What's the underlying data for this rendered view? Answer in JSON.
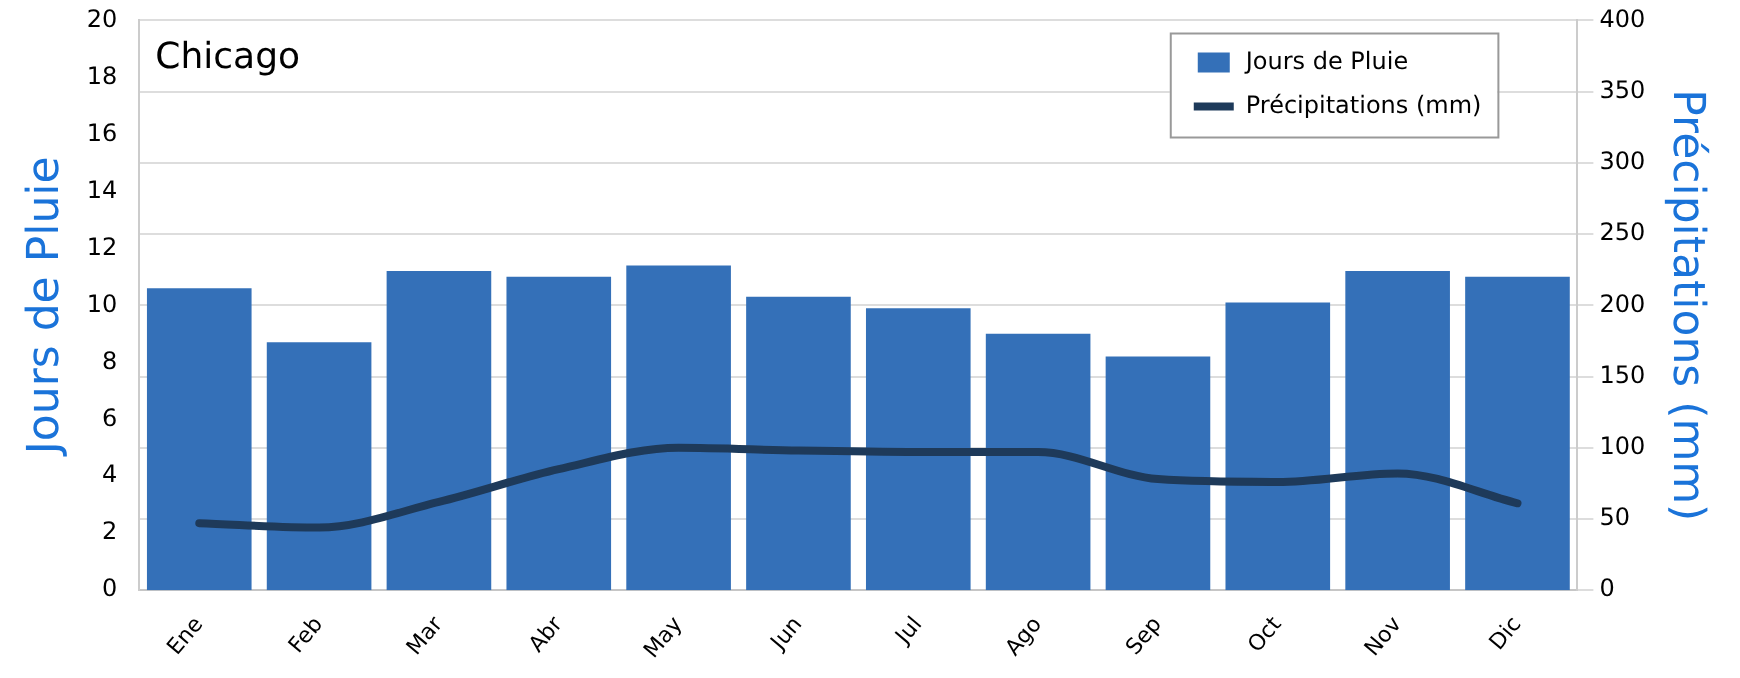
{
  "chart_data": {
    "type": "bar",
    "title": "Chicago",
    "ylabel": "Jours de Pluie",
    "y2label": "Précipitations (mm)",
    "categories": [
      "Ene",
      "Feb",
      "Mar",
      "Abr",
      "May",
      "Jun",
      "Jul",
      "Ago",
      "Sep",
      "Oct",
      "Nov",
      "Dic"
    ],
    "series": [
      {
        "name": "Jours de Pluie",
        "color": "#3470b8",
        "values": [
          10.6,
          8.7,
          11.2,
          11.0,
          11.4,
          10.3,
          9.9,
          9.0,
          8.2,
          10.1,
          11.2,
          11.0
        ]
      },
      {
        "name": "Précipitations (mm)",
        "type": "line",
        "axis": "y2",
        "color": "#1e3a5a",
        "values": [
          47,
          44,
          62,
          85,
          100,
          98,
          97,
          97,
          78,
          76,
          82,
          61
        ]
      }
    ],
    "ylim": [
      0,
      20
    ],
    "yticks": [
      0,
      2,
      4,
      6,
      8,
      10,
      12,
      14,
      16,
      18,
      20
    ],
    "y2lim": [
      0,
      400
    ],
    "y2ticks": [
      0,
      50,
      100,
      150,
      200,
      250,
      300,
      350,
      400
    ],
    "grid": "y",
    "legend": "top right",
    "marker": "none",
    "line_style": "solid"
  }
}
